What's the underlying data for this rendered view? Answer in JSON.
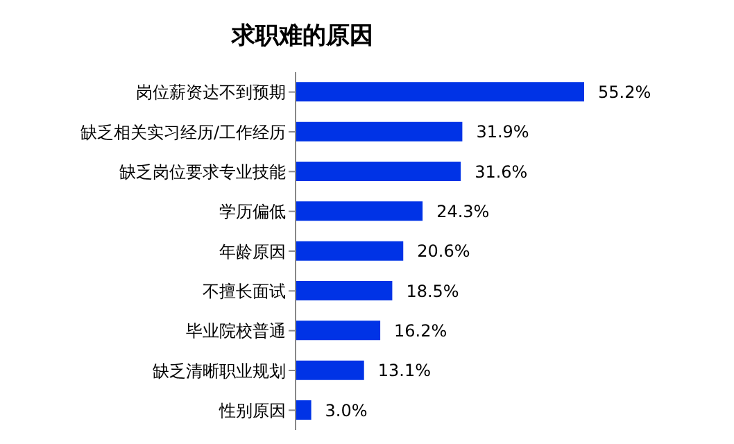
{
  "chart_data": {
    "type": "bar",
    "orientation": "horizontal",
    "title": "求职难的原因",
    "categories": [
      "岗位薪资达不到预期",
      "缺乏相关实习经历/工作经历",
      "缺乏岗位要求专业技能",
      "学历偏低",
      "年龄原因",
      "不擅长面试",
      "毕业院校普通",
      "缺乏清晰职业规划",
      "性别原因"
    ],
    "values": [
      55.2,
      31.9,
      31.6,
      24.3,
      20.6,
      18.5,
      16.2,
      13.1,
      3.0
    ],
    "value_labels": [
      "55.2%",
      "31.9%",
      "31.6%",
      "24.3%",
      "20.6%",
      "18.5%",
      "16.2%",
      "13.1%",
      "3.0%"
    ],
    "color": "#0033e6",
    "grid": false,
    "legend": false,
    "tick_labels": "y"
  }
}
